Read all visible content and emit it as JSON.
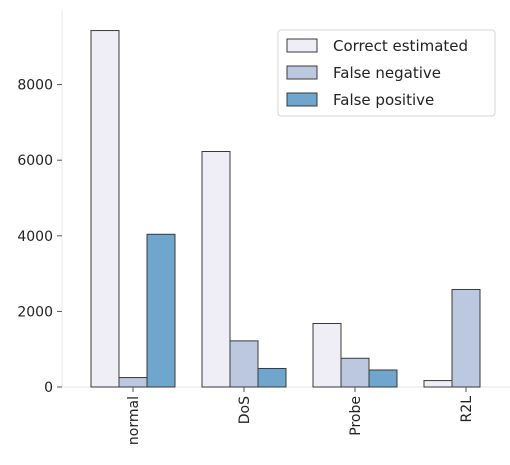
{
  "chart_data": {
    "type": "bar",
    "categories": [
      "normal",
      "DoS",
      "Probe",
      "R2L"
    ],
    "series": [
      {
        "name": "Correct estimated",
        "color": "#efedf5",
        "values": [
          9430,
          6230,
          1680,
          170
        ]
      },
      {
        "name": "False negative",
        "color": "#bcc8e0",
        "values": [
          250,
          1220,
          760,
          2580
        ]
      },
      {
        "name": "False positive",
        "color": "#6ea6cd",
        "values": [
          4040,
          490,
          450,
          0
        ]
      }
    ],
    "y_ticks": [
      0,
      2000,
      4000,
      6000,
      8000
    ],
    "ylim": [
      0,
      10000
    ],
    "title": "",
    "xlabel": "",
    "ylabel": "",
    "legend_position": "top-right",
    "grid": false,
    "bar_edge_color": "#3a3a3a",
    "axis_color": "#ececec"
  }
}
